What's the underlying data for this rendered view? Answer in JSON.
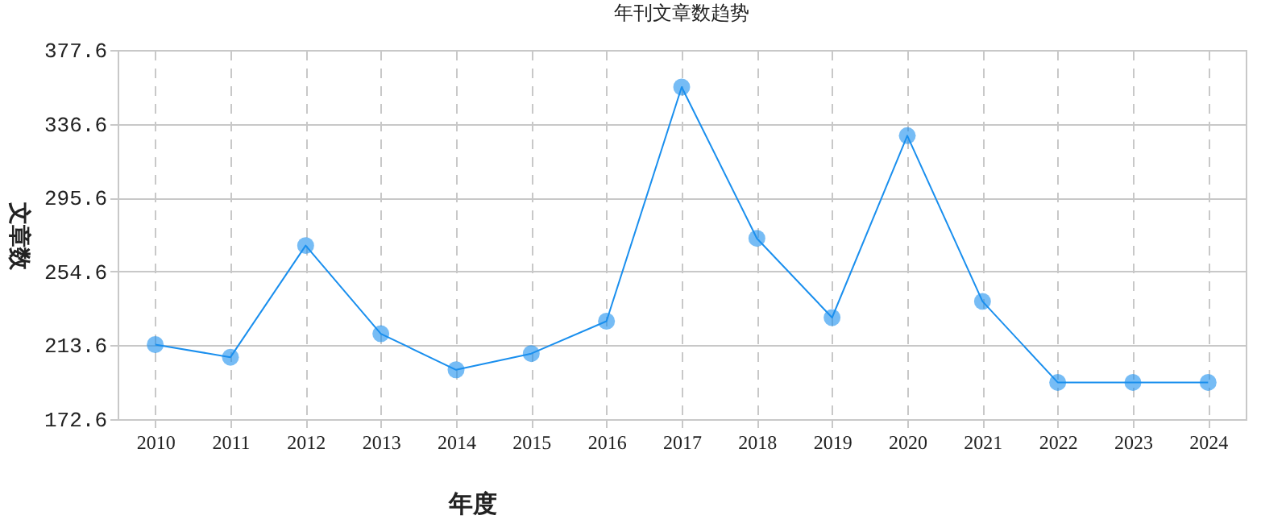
{
  "chart_data": {
    "type": "line",
    "title": "年刊文章数趋势",
    "xlabel": "年度",
    "ylabel": "文章数",
    "categories": [
      "2010",
      "2011",
      "2012",
      "2013",
      "2014",
      "2015",
      "2016",
      "2017",
      "2018",
      "2019",
      "2020",
      "2021",
      "2022",
      "2023",
      "2024"
    ],
    "series": [
      {
        "color": "#1a8fee",
        "values": [
          214,
          207,
          269,
          220,
          200,
          209,
          227,
          357,
          273,
          229,
          330,
          238,
          193,
          193,
          193
        ]
      }
    ],
    "ylim": [
      172.6,
      377.6
    ],
    "yticks": [
      172.6,
      213.6,
      254.6,
      295.6,
      336.6,
      377.6
    ],
    "grid": true,
    "marker": "circle",
    "line_style": "solid"
  }
}
